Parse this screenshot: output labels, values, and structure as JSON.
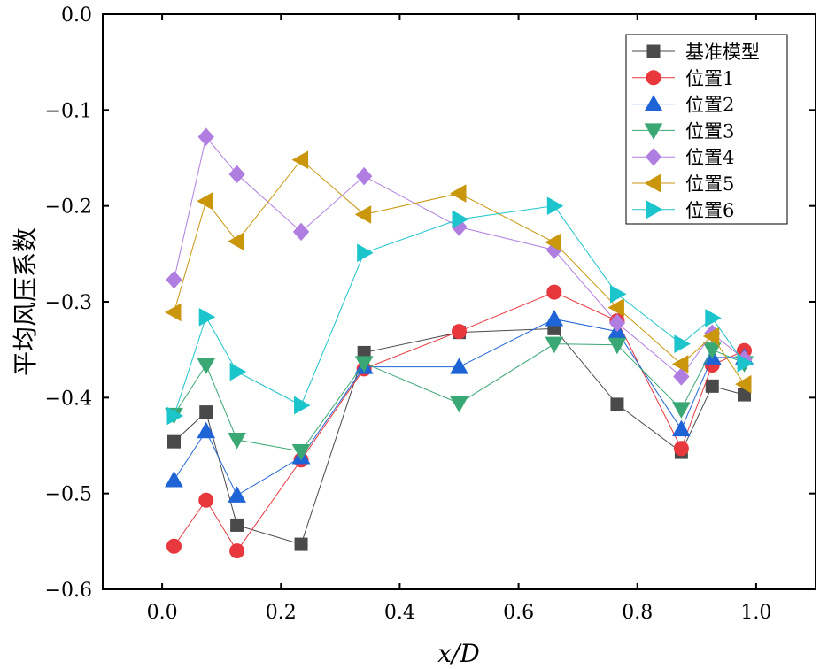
{
  "chart_data": {
    "type": "line",
    "title": "",
    "xlabel": "x/D",
    "ylabel": "平均风压系数",
    "xlim": [
      -0.1,
      1.1
    ],
    "ylim": [
      -0.6,
      0.0
    ],
    "xticks": [
      0.0,
      0.2,
      0.4,
      0.6,
      0.8,
      1.0
    ],
    "xtick_labels": [
      "0.0",
      "0.2",
      "0.4",
      "0.6",
      "0.8",
      "1.0"
    ],
    "yticks": [
      0.0,
      -0.1,
      -0.2,
      -0.3,
      -0.4,
      -0.5,
      -0.6
    ],
    "ytick_labels": [
      "0.0",
      "−0.1",
      "−0.2",
      "−0.3",
      "−0.4",
      "−0.5",
      "−0.6"
    ],
    "grid": false,
    "legend_position": "top-right",
    "x": [
      0.02,
      0.074,
      0.126,
      0.234,
      0.34,
      0.5,
      0.66,
      0.766,
      0.874,
      0.926,
      0.98
    ],
    "series": [
      {
        "name": "基准模型",
        "marker": "square",
        "color": "#4a4a4a",
        "values": [
          -0.446,
          -0.415,
          -0.533,
          -0.553,
          -0.353,
          -0.332,
          -0.328,
          -0.407,
          -0.457,
          -0.388,
          -0.397
        ]
      },
      {
        "name": "位置1",
        "marker": "circle",
        "color": "#e8373d",
        "values": [
          -0.555,
          -0.507,
          -0.56,
          -0.465,
          -0.37,
          -0.331,
          -0.29,
          -0.32,
          -0.453,
          -0.366,
          -0.351
        ]
      },
      {
        "name": "位置2",
        "marker": "triangle-up",
        "color": "#1f64d6",
        "values": [
          -0.486,
          -0.435,
          -0.502,
          -0.462,
          -0.368,
          -0.368,
          -0.318,
          -0.331,
          -0.433,
          -0.358,
          -0.358
        ]
      },
      {
        "name": "位置3",
        "marker": "triangle-down",
        "color": "#3aa875",
        "values": [
          -0.418,
          -0.366,
          -0.444,
          -0.456,
          -0.364,
          -0.406,
          -0.344,
          -0.345,
          -0.412,
          -0.35,
          -0.364
        ]
      },
      {
        "name": "位置4",
        "marker": "diamond",
        "color": "#b07ee0",
        "values": [
          -0.277,
          -0.128,
          -0.167,
          -0.227,
          -0.169,
          -0.222,
          -0.246,
          -0.322,
          -0.378,
          -0.333,
          -0.36
        ]
      },
      {
        "name": "位置5",
        "marker": "triangle-left",
        "color": "#c9960c",
        "values": [
          -0.311,
          -0.195,
          -0.237,
          -0.152,
          -0.209,
          -0.187,
          -0.238,
          -0.306,
          -0.365,
          -0.336,
          -0.386
        ]
      },
      {
        "name": "位置6",
        "marker": "triangle-right",
        "color": "#1cc4cc",
        "values": [
          -0.419,
          -0.316,
          -0.373,
          -0.408,
          -0.249,
          -0.214,
          -0.2,
          -0.292,
          -0.344,
          -0.317,
          -0.364
        ]
      }
    ]
  }
}
